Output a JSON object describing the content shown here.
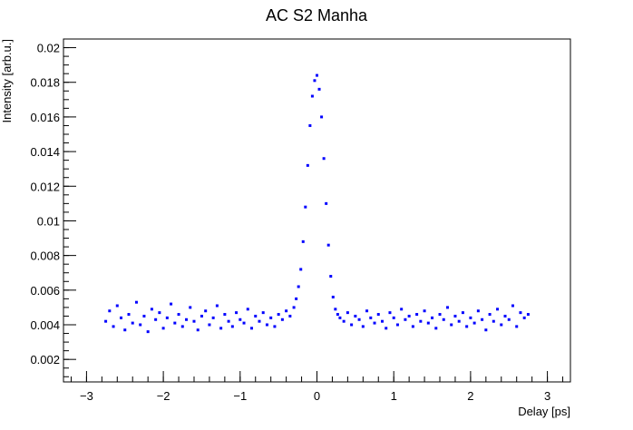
{
  "chart_data": {
    "type": "scatter",
    "title": "AC S2 Manha",
    "xlabel": "Delay [ps]",
    "ylabel": "Intensity [arb.u.]",
    "xlim": [
      -3.3,
      3.3
    ],
    "ylim": [
      0.0007,
      0.0205
    ],
    "xticks": [
      -3,
      -2,
      -1,
      0,
      1,
      2,
      3
    ],
    "xtick_labels": [
      "−3",
      "−2",
      "−1",
      "0",
      "1",
      "2",
      "3"
    ],
    "yticks": [
      0.002,
      0.004,
      0.006,
      0.008,
      0.01,
      0.012,
      0.014,
      0.016,
      0.018,
      0.02
    ],
    "ytick_labels": [
      "0.002",
      "0.004",
      "0.006",
      "0.008",
      "0.01",
      "0.012",
      "0.014",
      "0.016",
      "0.018",
      "0.02"
    ],
    "grid": false,
    "legend": "none",
    "marker_color": "#0000ff",
    "series": [
      {
        "x": [
          -2.75,
          -2.7,
          -2.65,
          -2.6,
          -2.55,
          -2.5,
          -2.45,
          -2.4,
          -2.35,
          -2.3,
          -2.25,
          -2.2,
          -2.15,
          -2.1,
          -2.05,
          -2.0,
          -1.95,
          -1.9,
          -1.85,
          -1.8,
          -1.75,
          -1.7,
          -1.65,
          -1.6,
          -1.55,
          -1.5,
          -1.45,
          -1.4,
          -1.35,
          -1.3,
          -1.25,
          -1.2,
          -1.15,
          -1.1,
          -1.05,
          -1.0,
          -0.95,
          -0.9,
          -0.85,
          -0.8,
          -0.75,
          -0.7,
          -0.65,
          -0.6,
          -0.55,
          -0.5,
          -0.45,
          -0.4,
          -0.35,
          -0.3,
          -0.27,
          -0.24,
          -0.21,
          -0.18,
          -0.15,
          -0.12,
          -0.09,
          -0.06,
          -0.03,
          0.0,
          0.03,
          0.06,
          0.09,
          0.12,
          0.15,
          0.18,
          0.21,
          0.24,
          0.27,
          0.3,
          0.35,
          0.4,
          0.45,
          0.5,
          0.55,
          0.6,
          0.65,
          0.7,
          0.75,
          0.8,
          0.85,
          0.9,
          0.95,
          1.0,
          1.05,
          1.1,
          1.15,
          1.2,
          1.25,
          1.3,
          1.35,
          1.4,
          1.45,
          1.5,
          1.55,
          1.6,
          1.65,
          1.7,
          1.75,
          1.8,
          1.85,
          1.9,
          1.95,
          2.0,
          2.05,
          2.1,
          2.15,
          2.2,
          2.25,
          2.3,
          2.35,
          2.4,
          2.45,
          2.5,
          2.55,
          2.6,
          2.65,
          2.7,
          2.75
        ],
        "y": [
          0.0042,
          0.0048,
          0.0039,
          0.0051,
          0.0044,
          0.0037,
          0.0046,
          0.0041,
          0.0053,
          0.004,
          0.0045,
          0.0036,
          0.0049,
          0.0043,
          0.0047,
          0.0038,
          0.0044,
          0.0052,
          0.0041,
          0.0046,
          0.0039,
          0.0043,
          0.005,
          0.0042,
          0.0037,
          0.0045,
          0.0048,
          0.004,
          0.0044,
          0.0051,
          0.0038,
          0.0046,
          0.0042,
          0.0039,
          0.0047,
          0.0043,
          0.0041,
          0.0049,
          0.0038,
          0.0045,
          0.0042,
          0.0047,
          0.004,
          0.0044,
          0.0039,
          0.0046,
          0.0043,
          0.0048,
          0.0045,
          0.005,
          0.0055,
          0.0062,
          0.0072,
          0.0088,
          0.0108,
          0.0132,
          0.0155,
          0.0172,
          0.0181,
          0.0184,
          0.0176,
          0.016,
          0.0136,
          0.011,
          0.0086,
          0.0068,
          0.0056,
          0.0049,
          0.0046,
          0.0044,
          0.0042,
          0.0047,
          0.004,
          0.0045,
          0.0043,
          0.0039,
          0.0048,
          0.0044,
          0.0041,
          0.0046,
          0.0042,
          0.0038,
          0.0047,
          0.0044,
          0.004,
          0.0049,
          0.0043,
          0.0045,
          0.0039,
          0.0046,
          0.0042,
          0.0048,
          0.0041,
          0.0044,
          0.0038,
          0.0046,
          0.0043,
          0.005,
          0.004,
          0.0045,
          0.0042,
          0.0047,
          0.0039,
          0.0044,
          0.0041,
          0.0048,
          0.0043,
          0.0037,
          0.0046,
          0.0042,
          0.0049,
          0.004,
          0.0045,
          0.0043,
          0.0051,
          0.0039,
          0.0047,
          0.0044,
          0.0046
        ]
      }
    ]
  }
}
